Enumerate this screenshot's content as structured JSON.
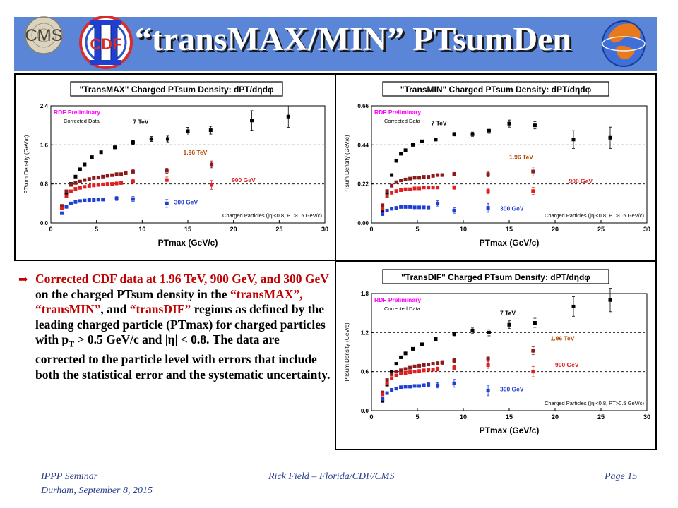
{
  "slide": {
    "title": "“transMAX/MIN” PTsumDen",
    "cdf_logo_text": "CDF",
    "cms_logo_text": "CMS"
  },
  "bullet": {
    "parts": [
      {
        "text": "Corrected CDF data at 1.96 TeV, 900 GeV, and 300 GeV",
        "color": "red"
      },
      {
        "text": " on the charged PTsum density in the ",
        "color": "black"
      },
      {
        "text": "“transMAX”, “transMIN”",
        "color": "red"
      },
      {
        "text": ", and ",
        "color": "black"
      },
      {
        "text": "“transDIF”",
        "color": "red"
      },
      {
        "text": " regions as defined by the leading charged particle (PTmax) for charged particles with p",
        "color": "black"
      },
      {
        "text": "T",
        "color": "black",
        "sub": true
      },
      {
        "text": " > 0.5 GeV/c and |η| < 0.8. The data are corrected to the particle level with errors that include both the statistical error and the systematic uncertainty.",
        "color": "black"
      }
    ]
  },
  "footer": {
    "left_line1": "IPPP Seminar",
    "left_line2": "Durham, September 8, 2015",
    "center": "Rick Field – Florida/CDF/CMS",
    "right": "Page 15"
  },
  "colors": {
    "banner": "#5b86d8",
    "s7": "#000000",
    "s196": "#8b1a1a",
    "s900": "#e02020",
    "s300": "#1f3fd0",
    "prelim": "#ff00ff",
    "lbl196": "#b34700"
  },
  "chart_data": [
    {
      "type": "scatter",
      "title": "\"TransMAX\" Charged PTsum Density: dPT/dηdφ",
      "xlabel": "PTmax (GeV/c)",
      "ylabel": "PTsum Density (GeV/c)",
      "xlim": [
        0,
        30
      ],
      "ylim": [
        0,
        2.4
      ],
      "xticks": [
        0,
        5,
        10,
        15,
        20,
        25,
        30
      ],
      "yticks": [
        0.0,
        0.8,
        1.6,
        2.4
      ],
      "ytick_labels": [
        "0.0",
        "0.8",
        "1.6",
        "2.4"
      ],
      "grid_y": [
        0.8,
        1.6
      ],
      "prelim": "RDF Preliminary",
      "corrected": "Corrected Data",
      "cuts": "Charged Particles (|η|<0.8, PT>0.5 GeV/c)",
      "series": [
        {
          "name": "7 TeV",
          "color": "#000000",
          "x": [
            1.2,
            1.7,
            2.2,
            2.7,
            3.2,
            3.7,
            4.5,
            5.5,
            7,
            9,
            11,
            12.8,
            15,
            17.5,
            22,
            26
          ],
          "y": [
            0.3,
            0.6,
            0.8,
            0.95,
            1.1,
            1.2,
            1.35,
            1.45,
            1.55,
            1.65,
            1.72,
            1.72,
            1.88,
            1.9,
            2.1,
            2.18
          ],
          "err": [
            0.02,
            0.02,
            0.02,
            0.02,
            0.02,
            0.02,
            0.02,
            0.02,
            0.03,
            0.04,
            0.05,
            0.06,
            0.08,
            0.08,
            0.2,
            0.22
          ],
          "label_at": [
            9.0,
            2.03
          ]
        },
        {
          "name": "1.96 TeV",
          "color": "#8b1a1a",
          "x": [
            1.2,
            1.7,
            2.2,
            2.7,
            3.2,
            3.7,
            4.2,
            4.7,
            5.2,
            5.7,
            6.2,
            6.7,
            7.2,
            7.7,
            8.2,
            9.0,
            12.7,
            17.6
          ],
          "y": [
            0.35,
            0.65,
            0.78,
            0.82,
            0.85,
            0.88,
            0.9,
            0.92,
            0.93,
            0.95,
            0.97,
            0.98,
            1.0,
            1.0,
            1.02,
            1.05,
            1.07,
            1.2
          ],
          "err": [
            0.02,
            0.02,
            0.02,
            0.02,
            0.02,
            0.02,
            0.02,
            0.02,
            0.02,
            0.02,
            0.02,
            0.02,
            0.02,
            0.03,
            0.03,
            0.04,
            0.05,
            0.07
          ],
          "label_at": [
            14.5,
            1.4
          ]
        },
        {
          "name": "900 GeV",
          "color": "#e02020",
          "x": [
            1.2,
            1.7,
            2.2,
            2.7,
            3.2,
            3.7,
            4.2,
            4.7,
            5.2,
            5.7,
            6.2,
            6.7,
            7.2,
            7.7,
            9.0,
            12.7,
            17.6
          ],
          "y": [
            0.3,
            0.55,
            0.65,
            0.7,
            0.72,
            0.74,
            0.76,
            0.77,
            0.78,
            0.79,
            0.8,
            0.8,
            0.81,
            0.82,
            0.85,
            0.88,
            0.78
          ],
          "err": [
            0.02,
            0.02,
            0.02,
            0.02,
            0.02,
            0.02,
            0.02,
            0.02,
            0.02,
            0.02,
            0.02,
            0.03,
            0.03,
            0.03,
            0.04,
            0.06,
            0.09
          ],
          "label_at": [
            19.8,
            0.84
          ]
        },
        {
          "name": "300 GeV",
          "color": "#1f3fd0",
          "x": [
            1.2,
            1.7,
            2.2,
            2.7,
            3.2,
            3.7,
            4.2,
            4.7,
            5.2,
            5.7,
            7.2,
            9.0,
            12.7
          ],
          "y": [
            0.2,
            0.33,
            0.4,
            0.43,
            0.45,
            0.46,
            0.47,
            0.47,
            0.48,
            0.48,
            0.5,
            0.49,
            0.4
          ],
          "err": [
            0.02,
            0.02,
            0.02,
            0.02,
            0.02,
            0.02,
            0.02,
            0.02,
            0.02,
            0.03,
            0.04,
            0.05,
            0.08
          ],
          "label_at": [
            13.5,
            0.38
          ]
        }
      ]
    },
    {
      "type": "scatter",
      "title": "\"TransMIN\" Charged PTsum Density: dPT/dηdφ",
      "xlabel": "PTmax (GeV/c)",
      "ylabel": "PTsum Density (GeV/c)",
      "xlim": [
        0,
        30
      ],
      "ylim": [
        0,
        0.66
      ],
      "xticks": [
        0,
        5,
        10,
        15,
        20,
        25,
        30
      ],
      "yticks": [
        0.0,
        0.22,
        0.44,
        0.66
      ],
      "ytick_labels": [
        "0.00",
        "0.22",
        "0.44",
        "0.66"
      ],
      "grid_y": [
        0.22,
        0.44
      ],
      "prelim": "RDF Preliminary",
      "corrected": "Corrected Data",
      "cuts": "Charged Particles (|η|<0.8, PT>0.5 GeV/c)",
      "series": [
        {
          "name": "7 TeV",
          "color": "#000000",
          "x": [
            1.2,
            1.7,
            2.2,
            2.7,
            3.2,
            3.7,
            4.5,
            5.5,
            7,
            9,
            11,
            12.8,
            15,
            17.8,
            22,
            26
          ],
          "y": [
            0.07,
            0.17,
            0.27,
            0.35,
            0.39,
            0.41,
            0.44,
            0.46,
            0.47,
            0.5,
            0.5,
            0.52,
            0.56,
            0.55,
            0.47,
            0.48
          ],
          "err": [
            0.005,
            0.005,
            0.005,
            0.005,
            0.005,
            0.005,
            0.006,
            0.007,
            0.008,
            0.01,
            0.012,
            0.015,
            0.02,
            0.02,
            0.05,
            0.06
          ],
          "label_at": [
            6.5,
            0.55
          ]
        },
        {
          "name": "1.96 TeV",
          "color": "#8b1a1a",
          "x": [
            1.2,
            1.7,
            2.2,
            2.7,
            3.2,
            3.7,
            4.2,
            4.7,
            5.2,
            5.7,
            6.2,
            6.7,
            7.2,
            7.7,
            9.0,
            12.7,
            17.6
          ],
          "y": [
            0.1,
            0.18,
            0.21,
            0.23,
            0.24,
            0.245,
            0.25,
            0.255,
            0.255,
            0.26,
            0.26,
            0.265,
            0.27,
            0.27,
            0.275,
            0.275,
            0.29
          ],
          "err": [
            0.005,
            0.005,
            0.005,
            0.005,
            0.005,
            0.005,
            0.005,
            0.005,
            0.005,
            0.006,
            0.006,
            0.007,
            0.007,
            0.008,
            0.01,
            0.015,
            0.025
          ],
          "label_at": [
            15.0,
            0.36
          ]
        },
        {
          "name": "900 GeV",
          "color": "#e02020",
          "x": [
            1.2,
            1.7,
            2.2,
            2.7,
            3.2,
            3.7,
            4.2,
            4.7,
            5.2,
            5.7,
            6.2,
            6.7,
            7.2,
            9.0,
            12.7,
            17.6
          ],
          "y": [
            0.08,
            0.15,
            0.17,
            0.18,
            0.185,
            0.19,
            0.19,
            0.195,
            0.195,
            0.2,
            0.2,
            0.2,
            0.2,
            0.2,
            0.18,
            0.18
          ],
          "err": [
            0.005,
            0.005,
            0.005,
            0.005,
            0.005,
            0.005,
            0.005,
            0.005,
            0.005,
            0.006,
            0.006,
            0.007,
            0.008,
            0.01,
            0.015,
            0.02
          ],
          "label_at": [
            21.5,
            0.225
          ]
        },
        {
          "name": "300 GeV",
          "color": "#1f3fd0",
          "x": [
            1.2,
            1.7,
            2.2,
            2.7,
            3.2,
            3.7,
            4.2,
            4.7,
            5.2,
            5.7,
            6.2,
            7.2,
            9.0,
            12.7
          ],
          "y": [
            0.05,
            0.07,
            0.08,
            0.085,
            0.09,
            0.09,
            0.09,
            0.088,
            0.088,
            0.088,
            0.087,
            0.11,
            0.07,
            0.085
          ],
          "err": [
            0.005,
            0.005,
            0.005,
            0.005,
            0.005,
            0.005,
            0.005,
            0.005,
            0.005,
            0.006,
            0.007,
            0.015,
            0.015,
            0.025
          ],
          "label_at": [
            14.0,
            0.07
          ]
        }
      ]
    },
    {
      "type": "scatter",
      "title": "\"TransDIF\" Charged PTsum Density: dPT/dηdφ",
      "xlabel": "PTmax (GeV/c)",
      "ylabel": "PTsum Density (GeV/c)",
      "xlim": [
        0,
        30
      ],
      "ylim": [
        0,
        1.8
      ],
      "xticks": [
        0,
        5,
        10,
        15,
        20,
        25,
        30
      ],
      "yticks": [
        0.0,
        0.6,
        1.2,
        1.8
      ],
      "ytick_labels": [
        "0.0",
        "0.6",
        "1.2",
        "1.8"
      ],
      "grid_y": [
        0.6,
        1.2
      ],
      "prelim": "RDF Preliminary",
      "corrected": "Corrected Data",
      "cuts": "Charged Particles (|η|<0.8, PT>0.5 GeV/c)",
      "series": [
        {
          "name": "7 TeV",
          "color": "#000000",
          "x": [
            1.2,
            1.7,
            2.2,
            2.7,
            3.2,
            3.7,
            4.5,
            5.5,
            7,
            9,
            11,
            12.8,
            15,
            17.8,
            22,
            26
          ],
          "y": [
            0.15,
            0.4,
            0.6,
            0.72,
            0.82,
            0.88,
            0.95,
            1.02,
            1.1,
            1.18,
            1.23,
            1.2,
            1.32,
            1.35,
            1.6,
            1.7
          ],
          "err": [
            0.02,
            0.02,
            0.02,
            0.02,
            0.02,
            0.02,
            0.02,
            0.02,
            0.03,
            0.03,
            0.04,
            0.05,
            0.06,
            0.07,
            0.15,
            0.18
          ],
          "label_at": [
            14.0,
            1.47
          ]
        },
        {
          "name": "1.96 TeV",
          "color": "#8b1a1a",
          "x": [
            1.2,
            1.7,
            2.2,
            2.7,
            3.2,
            3.7,
            4.2,
            4.7,
            5.2,
            5.7,
            6.2,
            6.7,
            7.2,
            7.7,
            9.0,
            12.7,
            17.6
          ],
          "y": [
            0.28,
            0.47,
            0.56,
            0.6,
            0.62,
            0.64,
            0.66,
            0.68,
            0.69,
            0.7,
            0.71,
            0.72,
            0.73,
            0.74,
            0.77,
            0.8,
            0.92
          ],
          "err": [
            0.02,
            0.02,
            0.02,
            0.02,
            0.02,
            0.02,
            0.02,
            0.02,
            0.02,
            0.02,
            0.02,
            0.02,
            0.02,
            0.03,
            0.03,
            0.04,
            0.06
          ],
          "label_at": [
            19.5,
            1.08
          ]
        },
        {
          "name": "900 GeV",
          "color": "#e02020",
          "x": [
            1.2,
            1.7,
            2.2,
            2.7,
            3.2,
            3.7,
            4.2,
            4.7,
            5.2,
            5.7,
            6.2,
            6.7,
            7.2,
            9.0,
            12.7,
            17.6
          ],
          "y": [
            0.25,
            0.42,
            0.5,
            0.54,
            0.57,
            0.58,
            0.59,
            0.6,
            0.61,
            0.62,
            0.63,
            0.63,
            0.64,
            0.66,
            0.7,
            0.6
          ],
          "err": [
            0.02,
            0.02,
            0.02,
            0.02,
            0.02,
            0.02,
            0.02,
            0.02,
            0.02,
            0.02,
            0.02,
            0.02,
            0.03,
            0.03,
            0.05,
            0.08
          ],
          "label_at": [
            20.0,
            0.67
          ]
        },
        {
          "name": "300 GeV",
          "color": "#1f3fd0",
          "x": [
            1.2,
            1.7,
            2.2,
            2.7,
            3.2,
            3.7,
            4.2,
            4.7,
            5.2,
            5.7,
            6.2,
            7.2,
            9.0,
            12.7
          ],
          "y": [
            0.18,
            0.27,
            0.32,
            0.34,
            0.36,
            0.37,
            0.37,
            0.38,
            0.38,
            0.39,
            0.4,
            0.39,
            0.42,
            0.31
          ],
          "err": [
            0.02,
            0.02,
            0.02,
            0.02,
            0.02,
            0.02,
            0.02,
            0.02,
            0.02,
            0.02,
            0.03,
            0.04,
            0.06,
            0.08
          ],
          "label_at": [
            14.0,
            0.3
          ]
        }
      ]
    }
  ]
}
